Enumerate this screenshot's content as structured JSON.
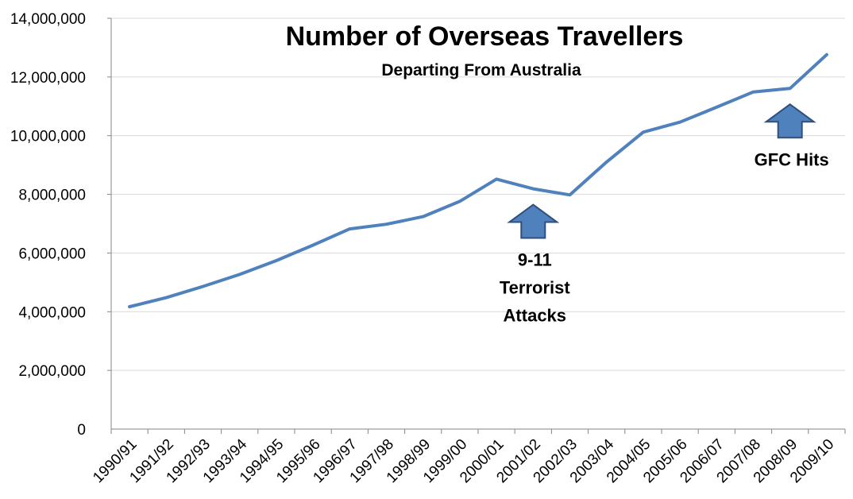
{
  "chart_data": {
    "type": "line",
    "title": "Number of Overseas Travellers",
    "subtitle": "Departing From Australia",
    "xlabel": "",
    "ylabel": "",
    "ylim": [
      0,
      14000000
    ],
    "yticks": [
      0,
      2000000,
      4000000,
      6000000,
      8000000,
      10000000,
      12000000,
      14000000
    ],
    "ytick_labels": [
      "0",
      "2,000,000",
      "4,000,000",
      "6,000,000",
      "8,000,000",
      "10,000,000",
      "12,000,000",
      "14,000,000"
    ],
    "grid": true,
    "legend": "none",
    "categories": [
      "1990/91",
      "1991/92",
      "1992/93",
      "1993/94",
      "1994/95",
      "1995/96",
      "1996/97",
      "1997/98",
      "1998/99",
      "1999/00",
      "2000/01",
      "2001/02",
      "2002/03",
      "2003/04",
      "2004/05",
      "2005/06",
      "2006/07",
      "2007/08",
      "2008/09",
      "2009/10"
    ],
    "series": [
      {
        "values": [
          4170000,
          4480000,
          4860000,
          5270000,
          5740000,
          6270000,
          6820000,
          6980000,
          7240000,
          7760000,
          8520000,
          8190000,
          7980000,
          9100000,
          10120000,
          10460000,
          10970000,
          11490000,
          11610000,
          12760000
        ],
        "color": "#4f81bd"
      }
    ],
    "annotations": [
      {
        "lines": [
          "9-11",
          "Terrorist",
          "Attacks"
        ],
        "arrow_at": "2001/02"
      },
      {
        "lines": [
          "GFC Hits"
        ],
        "arrow_at": "2008/09"
      }
    ],
    "arrow_color": "#4f81bd",
    "arrow_outline": "#2f4f7f",
    "gridline_color": "#d9d9d9",
    "axis_color": "#868686"
  }
}
